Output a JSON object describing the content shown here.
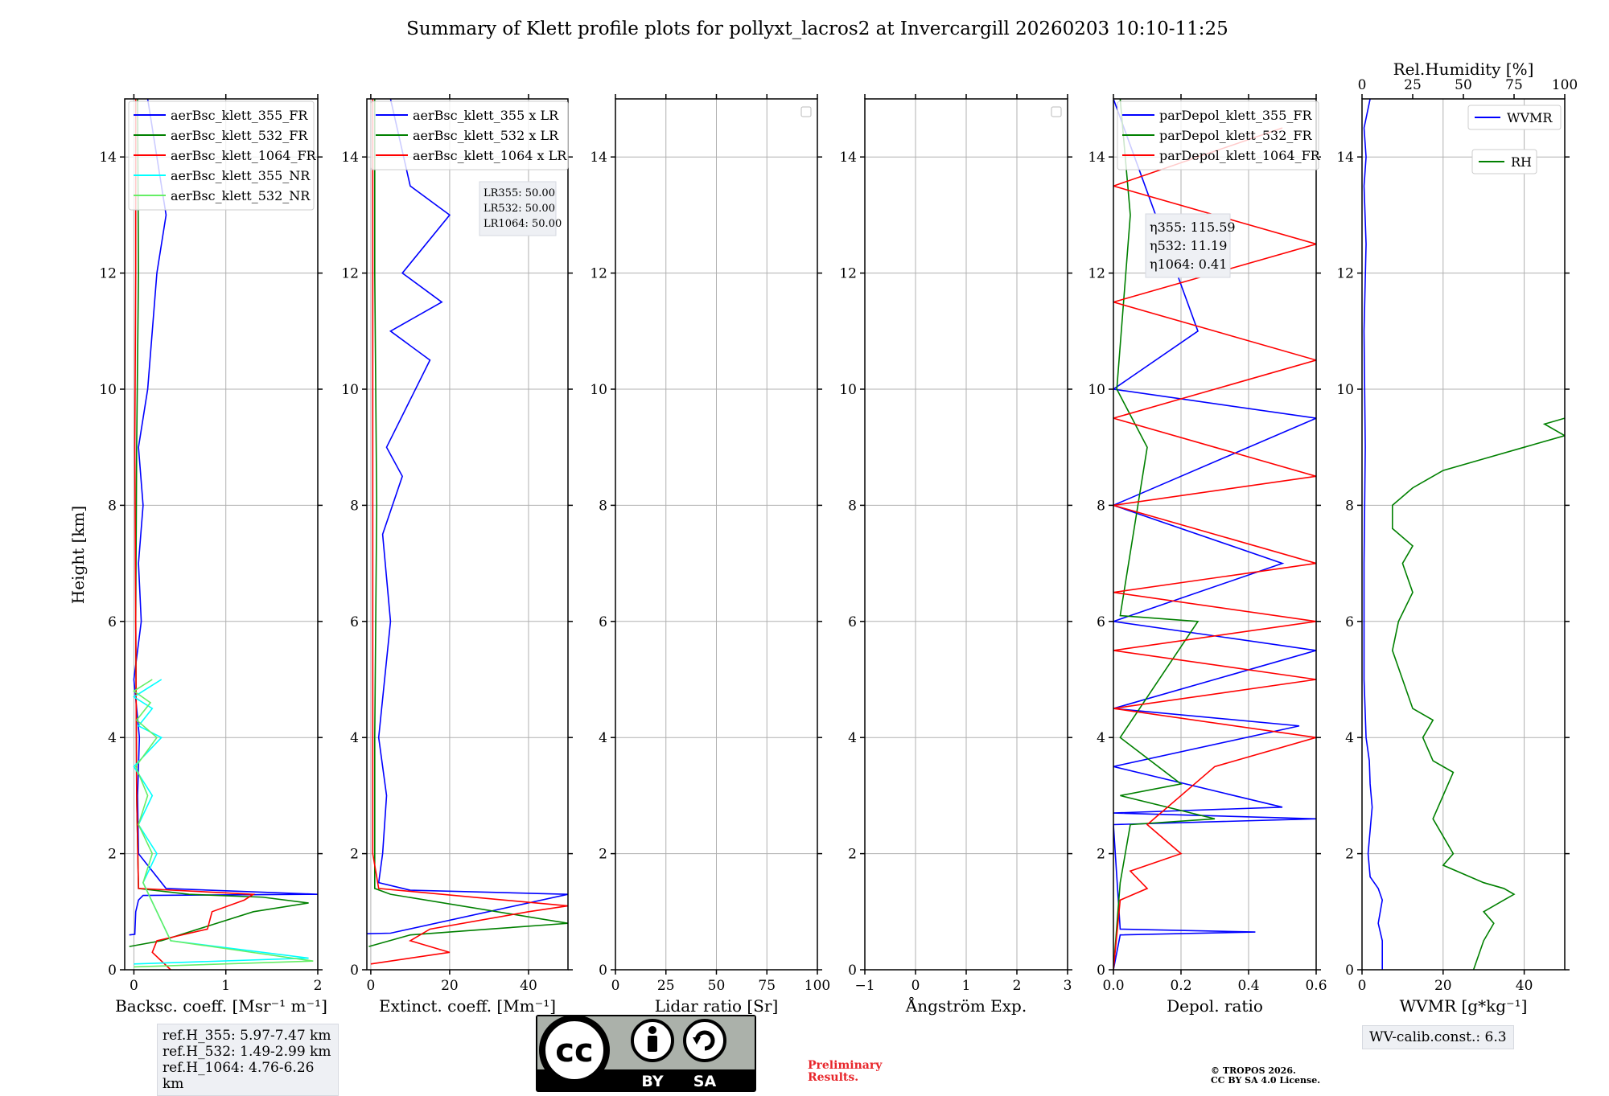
{
  "title": "Summary of Klett profile plots for pollyxt_lacros2 at Invercargill 20260203 10:10-11:25",
  "y_label": "Height [km]",
  "colors": {
    "blue": "#0000ff",
    "green": "#008000",
    "red": "#ff0000",
    "cyan": "#00ffff",
    "lightgreen": "#66ee66",
    "grid": "#b0b0b0"
  },
  "chart_data": [
    {
      "type": "line",
      "xlabel": "Backsc. coeff. [Msr⁻¹ m⁻¹]",
      "xlim": [
        -0.1,
        2
      ],
      "ylim": [
        0,
        15
      ],
      "xticks": [
        {
          "v": 0,
          "l": "0"
        },
        {
          "v": 1,
          "l": "1"
        },
        {
          "v": 2,
          "l": "2"
        }
      ],
      "yticks": [
        "0",
        "2",
        "4",
        "6",
        "8",
        "10",
        "12",
        "14"
      ],
      "legend": [
        {
          "label": "aerBsc_klett_355_FR",
          "color": "#0000ff"
        },
        {
          "label": "aerBsc_klett_532_FR",
          "color": "#008000"
        },
        {
          "label": "aerBsc_klett_1064_FR",
          "color": "#ff0000"
        },
        {
          "label": "aerBsc_klett_355_NR",
          "color": "#00ffff"
        },
        {
          "label": "aerBsc_klett_532_NR",
          "color": "#66ee66"
        }
      ],
      "series": [
        {
          "name": "aerBsc_klett_355_FR",
          "color": "#0000ff",
          "x": [
            -0.05,
            0.01,
            0.02,
            0.05,
            0.1,
            2.0,
            1.0,
            0.35,
            0.05,
            0.04,
            0.06,
            0.0,
            0.08,
            0.05,
            0.1,
            0.05,
            0.15,
            0.2,
            0.25,
            0.35,
            0.15
          ],
          "y": [
            0.6,
            0.61,
            1.0,
            1.2,
            1.28,
            1.3,
            1.36,
            1.4,
            2.0,
            3.0,
            4.0,
            5.0,
            6.0,
            7.0,
            8.0,
            9.0,
            10.0,
            11.0,
            12.0,
            13.0,
            15.0
          ]
        },
        {
          "name": "aerBsc_klett_532_FR",
          "color": "#008000",
          "x": [
            -0.05,
            0.3,
            0.9,
            1.3,
            1.9,
            1.4,
            0.6,
            0.05,
            0.03,
            0.02,
            0.03,
            0.05,
            0.04
          ],
          "y": [
            0.4,
            0.5,
            0.8,
            1.0,
            1.15,
            1.25,
            1.3,
            1.4,
            3.0,
            6.0,
            9.0,
            12.0,
            15.0
          ]
        },
        {
          "name": "aerBsc_klett_1064_FR",
          "color": "#ff0000",
          "x": [
            0.4,
            0.2,
            0.25,
            0.8,
            0.85,
            1.2,
            1.3,
            0.05,
            0.03,
            0.02,
            0.01,
            0.02,
            0.02
          ],
          "y": [
            0.0,
            0.3,
            0.5,
            0.7,
            1.0,
            1.2,
            1.3,
            1.4,
            3.0,
            6.0,
            9.0,
            12.0,
            15.0
          ]
        },
        {
          "name": "aerBsc_klett_355_NR",
          "color": "#00ffff",
          "x": [
            0.0,
            1.9,
            0.4,
            0.1,
            0.25,
            0.05,
            0.2,
            0.0,
            0.3,
            0.05,
            0.2,
            0.0,
            0.2,
            0.3
          ],
          "y": [
            0.1,
            0.2,
            0.5,
            1.5,
            2.0,
            2.5,
            3.0,
            3.5,
            4.0,
            4.2,
            4.5,
            4.7,
            4.9,
            5.0
          ]
        },
        {
          "name": "aerBsc_klett_532_NR",
          "color": "#66ee66",
          "x": [
            0.0,
            1.95,
            0.4,
            0.1,
            0.2,
            0.05,
            0.15,
            0.02,
            0.25,
            0.03,
            0.18,
            0.0,
            0.2
          ],
          "y": [
            0.05,
            0.15,
            0.5,
            1.5,
            2.0,
            2.5,
            3.0,
            3.5,
            4.0,
            4.3,
            4.6,
            4.8,
            5.0
          ]
        }
      ]
    },
    {
      "type": "line",
      "xlabel": "Extinct. coeff. [Mm⁻¹]",
      "xlim": [
        -1,
        50
      ],
      "ylim": [
        0,
        15
      ],
      "xticks": [
        {
          "v": 0,
          "l": "0"
        },
        {
          "v": 20,
          "l": "20"
        },
        {
          "v": 40,
          "l": "40"
        }
      ],
      "yticks": [
        "0",
        "2",
        "4",
        "6",
        "8",
        "10",
        "12",
        "14"
      ],
      "legend": [
        {
          "label": "aerBsc_klett_355 x LR",
          "color": "#0000ff"
        },
        {
          "label": "aerBsc_klett_532 x LR",
          "color": "#008000"
        },
        {
          "label": "aerBsc_klett_1064 x LR",
          "color": "#ff0000"
        }
      ],
      "series": [
        {
          "name": "355",
          "color": "#0000ff",
          "x": [
            -1,
            5,
            50,
            10,
            2,
            3,
            4,
            2,
            5,
            3,
            8,
            4,
            15,
            5,
            18,
            8,
            20,
            10,
            5
          ],
          "y": [
            0.62,
            0.63,
            1.3,
            1.37,
            1.5,
            2.0,
            3.0,
            4.0,
            6.0,
            7.5,
            8.5,
            9.0,
            10.5,
            11.0,
            11.5,
            12.0,
            13.0,
            13.5,
            15.0
          ]
        },
        {
          "name": "532",
          "color": "#008000",
          "x": [
            -0.5,
            10,
            30,
            50,
            5,
            1,
            1,
            1.5,
            1,
            1
          ],
          "y": [
            0.4,
            0.6,
            0.7,
            0.8,
            1.3,
            1.4,
            4.0,
            8.0,
            12.0,
            15.0
          ]
        },
        {
          "name": "1064",
          "color": "#ff0000",
          "x": [
            0,
            20,
            10,
            15,
            40,
            50,
            2,
            0.5,
            0.5,
            0.5
          ],
          "y": [
            0.1,
            0.3,
            0.5,
            0.7,
            1.0,
            1.1,
            1.4,
            2.0,
            8.0,
            15.0
          ]
        }
      ],
      "annotation": [
        "LR355: 50.00",
        "LR532: 50.00",
        "LR1064: 50.00"
      ]
    },
    {
      "type": "line",
      "xlabel": "Lidar ratio [Sr]",
      "xlim": [
        0,
        100
      ],
      "ylim": [
        0,
        15
      ],
      "xticks": [
        {
          "v": 0,
          "l": "0"
        },
        {
          "v": 25,
          "l": "25"
        },
        {
          "v": 50,
          "l": "50"
        },
        {
          "v": 75,
          "l": "75"
        },
        {
          "v": 100,
          "l": "100"
        }
      ],
      "yticks": [
        "0",
        "2",
        "4",
        "6",
        "8",
        "10",
        "12",
        "14"
      ],
      "series": []
    },
    {
      "type": "line",
      "xlabel": "Ångström Exp.",
      "xlim": [
        -1,
        3
      ],
      "ylim": [
        0,
        15
      ],
      "xticks": [
        {
          "v": -1,
          "l": "−1"
        },
        {
          "v": 0,
          "l": "0"
        },
        {
          "v": 1,
          "l": "1"
        },
        {
          "v": 2,
          "l": "2"
        },
        {
          "v": 3,
          "l": "3"
        }
      ],
      "yticks": [
        "0",
        "2",
        "4",
        "6",
        "8",
        "10",
        "12",
        "14"
      ],
      "series": []
    },
    {
      "type": "line",
      "xlabel": "Depol. ratio",
      "xlim": [
        0,
        0.6
      ],
      "ylim": [
        0,
        15
      ],
      "xticks": [
        {
          "v": 0,
          "l": "0.0"
        },
        {
          "v": 0.2,
          "l": "0.2"
        },
        {
          "v": 0.4,
          "l": "0.4"
        },
        {
          "v": 0.6,
          "l": "0.6"
        }
      ],
      "yticks": [
        "0",
        "2",
        "4",
        "6",
        "8",
        "10",
        "12",
        "14"
      ],
      "legend": [
        {
          "label": "parDepol_klett_355_FR",
          "color": "#0000ff"
        },
        {
          "label": "parDepol_klett_532_FR",
          "color": "#008000"
        },
        {
          "label": "parDepol_klett_1064_FR",
          "color": "#ff0000"
        }
      ],
      "series": [
        {
          "name": "355",
          "color": "#0000ff",
          "x": [
            0.0,
            0.02,
            0.42,
            0.02,
            0.0,
            0.6,
            0.0,
            0.5,
            0.0,
            0.55,
            0.0,
            0.6,
            0.0,
            0.5,
            0.0,
            0.6,
            0.0,
            0.25,
            0.0
          ],
          "y": [
            0.0,
            0.6,
            0.65,
            0.7,
            2.5,
            2.6,
            2.7,
            2.8,
            3.5,
            4.2,
            4.5,
            5.5,
            6.0,
            7.0,
            8.0,
            9.5,
            10.0,
            11.0,
            15.0
          ]
        },
        {
          "name": "532",
          "color": "#008000",
          "x": [
            0.0,
            0.02,
            0.05,
            0.3,
            0.02,
            0.2,
            0.02,
            0.25,
            0.02,
            0.1,
            0.01,
            0.05,
            0.02
          ],
          "y": [
            0.0,
            1.5,
            2.5,
            2.6,
            3.0,
            3.2,
            4.0,
            6.0,
            6.1,
            9.0,
            10.0,
            13.0,
            15.0
          ]
        },
        {
          "name": "1064",
          "color": "#ff0000",
          "x": [
            0.0,
            0.02,
            0.1,
            0.05,
            0.2,
            0.1,
            0.3,
            0.6,
            0.0,
            0.6,
            0.0,
            0.6,
            0.0,
            0.6,
            0.0,
            0.6,
            0.0,
            0.6,
            0.0,
            0.6,
            0.0,
            0.5
          ],
          "y": [
            0.0,
            1.2,
            1.4,
            1.7,
            2.0,
            2.5,
            3.5,
            4.0,
            4.5,
            5.0,
            5.5,
            6.0,
            6.5,
            7.0,
            8.0,
            8.5,
            9.5,
            10.5,
            11.5,
            12.5,
            13.5,
            14.5
          ]
        }
      ],
      "annotation": [
        "η355: 115.59",
        "η532: 11.19",
        "η1064: 0.41"
      ]
    },
    {
      "type": "line",
      "xlabel": "WVMR [g*kg⁻¹]",
      "xlim": [
        0,
        50
      ],
      "ylim": [
        0,
        15
      ],
      "xticks": [
        {
          "v": 0,
          "l": "0"
        },
        {
          "v": 20,
          "l": "20"
        },
        {
          "v": 40,
          "l": "40"
        }
      ],
      "yticks": [
        "0",
        "2",
        "4",
        "6",
        "8",
        "10",
        "12",
        "14"
      ],
      "top_axis": {
        "label": "Rel.Humidity [%]",
        "xlim": [
          0,
          100
        ],
        "ticks": [
          {
            "v": 0,
            "l": "0"
          },
          {
            "v": 25,
            "l": "25"
          },
          {
            "v": 50,
            "l": "50"
          },
          {
            "v": 75,
            "l": "75"
          },
          {
            "v": 100,
            "l": "100"
          }
        ]
      },
      "legend": [
        {
          "label": "WVMR",
          "color": "#0000ff"
        },
        {
          "label": "RH",
          "color": "#008000"
        }
      ],
      "series": [
        {
          "name": "WVMR",
          "color": "#0000ff",
          "axis": "bottom",
          "x": [
            5,
            5,
            4,
            5,
            4,
            2,
            1.5,
            2,
            2.5,
            2,
            1.8,
            1,
            0.5,
            0.5,
            0.8,
            0.5,
            1,
            0.5,
            1,
            0.5,
            2
          ],
          "y": [
            0,
            0.5,
            0.8,
            1.2,
            1.4,
            1.6,
            2.0,
            2.4,
            2.8,
            3.2,
            3.6,
            4.0,
            5.0,
            7.0,
            9.0,
            11.0,
            12.5,
            13.5,
            14.0,
            14.5,
            15.0
          ]
        },
        {
          "name": "RH",
          "color": "#008000",
          "axis": "top",
          "x": [
            55,
            60,
            65,
            60,
            70,
            75,
            70,
            60,
            40,
            45,
            40,
            35,
            40,
            45,
            35,
            30,
            35,
            25,
            20,
            15,
            18,
            25,
            20,
            25,
            15,
            15,
            25,
            35,
            40,
            60,
            80,
            100,
            90,
            100
          ],
          "y": [
            0,
            0.5,
            0.8,
            1.0,
            1.2,
            1.3,
            1.4,
            1.5,
            1.8,
            2.0,
            2.3,
            2.6,
            3.0,
            3.4,
            3.6,
            4.0,
            4.3,
            4.5,
            5.0,
            5.5,
            6.0,
            6.5,
            7.0,
            7.3,
            7.6,
            8.0,
            8.3,
            8.5,
            8.6,
            8.8,
            9.0,
            9.2,
            9.4,
            9.5
          ]
        }
      ]
    }
  ],
  "ref_heights": [
    "ref.H_355: 5.97-7.47 km",
    "ref.H_532: 1.49-2.99 km",
    "ref.H_1064: 4.76-6.26 km"
  ],
  "wv_calib": "WV-calib.const.: 6.3",
  "preliminary": [
    "Preliminary",
    "Results."
  ],
  "copyright": [
    "© TROPOS 2026.",
    "CC BY SA 4.0 License."
  ],
  "badge": {
    "by": "BY",
    "sa": "SA",
    "cc": "cc"
  }
}
